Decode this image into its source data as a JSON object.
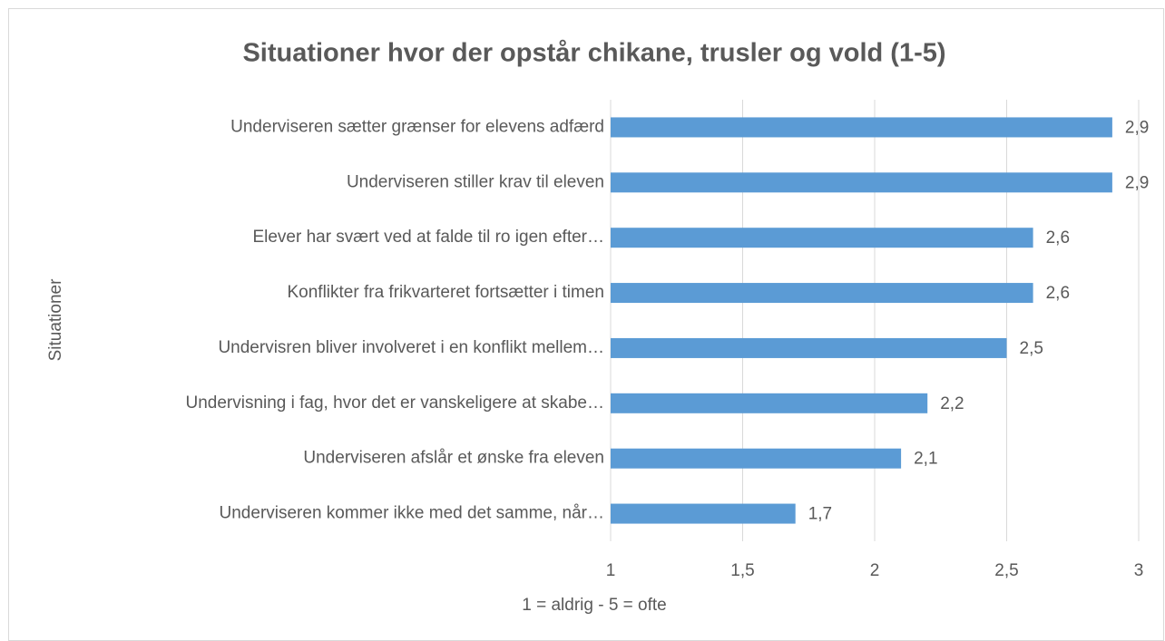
{
  "chart_data": {
    "type": "bar",
    "orientation": "horizontal",
    "title": "Situationer hvor der opstår chikane, trusler og vold (1-5)",
    "x_label": "1 = aldrig - 5 = ofte",
    "y_label": "Situationer",
    "categories": [
      "Underviseren sætter grænser for elevens adfærd",
      "Underviseren stiller krav til eleven",
      "Elever har svært ved at falde til ro igen efter…",
      "Konflikter fra frikvarteret fortsætter i timen",
      "Undervisren bliver involveret i en konflikt mellem…",
      "Undervisning i fag, hvor det er vanskeligere at skabe…",
      "Underviseren afslår et ønske fra eleven",
      "Underviseren kommer ikke med det samme, når…"
    ],
    "values": [
      2.9,
      2.9,
      2.6,
      2.6,
      2.5,
      2.2,
      2.1,
      1.7
    ],
    "value_labels": [
      "2,9",
      "2,9",
      "2,6",
      "2,6",
      "2,5",
      "2,2",
      "2,1",
      "1,7"
    ],
    "color": "#5b9bd5",
    "xlim": [
      1,
      3
    ],
    "xticks": [
      1,
      {
        "value": 1.5,
        "label": "1,5"
      },
      2,
      {
        "value": 2.5,
        "label": "2,5"
      },
      3
    ],
    "grid": true
  }
}
